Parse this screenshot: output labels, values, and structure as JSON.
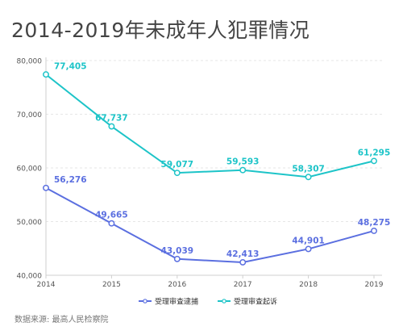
{
  "title": "2014-2019年未成年人犯罪情况",
  "source": "数据来源: 最高人民检察院",
  "colors": {
    "series1": "#5b6fe0",
    "series2": "#1dc4c8",
    "grid": "#e6e6e6",
    "axis": "#cfcfcf",
    "tick": "#555555"
  },
  "chart_data": {
    "type": "line",
    "title": "2014-2019年未成年人犯罪情况",
    "x": [
      "2014",
      "2015",
      "2016",
      "2017",
      "2018",
      "2019"
    ],
    "ylim": [
      40000,
      80000
    ],
    "yticks": [
      40000,
      50000,
      60000,
      70000,
      80000
    ],
    "ytick_labels": [
      "40,000",
      "50,000",
      "60,000",
      "70,000",
      "80,000"
    ],
    "grid": true,
    "legend_position": "bottom-center",
    "series": [
      {
        "name": "受理审查逮捕",
        "color": "#5b6fe0",
        "values": [
          56276,
          49665,
          43039,
          42413,
          44901,
          48275
        ],
        "labels": [
          "56,276",
          "49,665",
          "43,039",
          "42,413",
          "44,901",
          "48,275"
        ]
      },
      {
        "name": "受理审查起诉",
        "color": "#1dc4c8",
        "values": [
          77405,
          67737,
          59077,
          59593,
          58307,
          61295
        ],
        "labels": [
          "77,405",
          "67,737",
          "59,077",
          "59,593",
          "58,307",
          "61,295"
        ]
      }
    ]
  }
}
